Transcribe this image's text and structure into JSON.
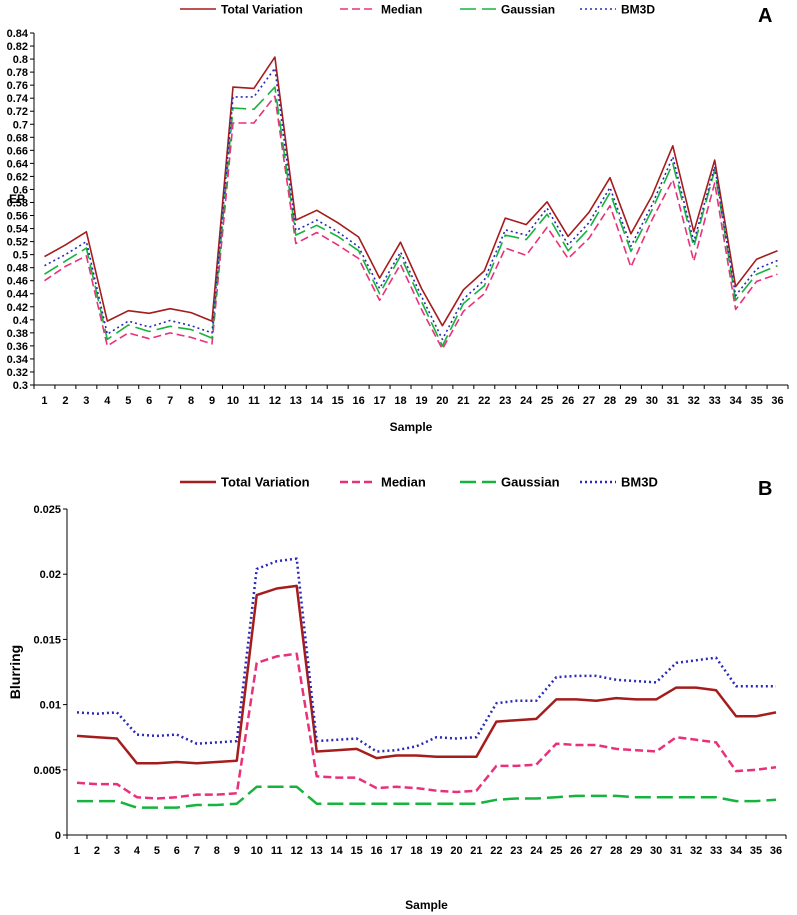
{
  "chart_data": [
    {
      "panel": "A",
      "type": "line",
      "xlabel": "Sample",
      "ylabel": "EP",
      "ylim": [
        0.3,
        0.84
      ],
      "ytick_step": 0.02,
      "x": [
        1,
        2,
        3,
        4,
        5,
        6,
        7,
        8,
        9,
        10,
        11,
        12,
        13,
        14,
        15,
        16,
        17,
        18,
        19,
        20,
        21,
        22,
        23,
        24,
        25,
        26,
        27,
        28,
        29,
        30,
        31,
        32,
        33,
        34,
        35,
        36
      ],
      "legend_placement": "top",
      "series": [
        {
          "name": "Total Variation",
          "color": "#a51c1c",
          "dash": "solid",
          "values": [
            0.497,
            0.515,
            0.535,
            0.398,
            0.414,
            0.41,
            0.417,
            0.411,
            0.398,
            0.757,
            0.755,
            0.803,
            0.553,
            0.568,
            0.549,
            0.527,
            0.464,
            0.519,
            0.448,
            0.391,
            0.446,
            0.475,
            0.556,
            0.546,
            0.581,
            0.528,
            0.565,
            0.618,
            0.532,
            0.59,
            0.667,
            0.535,
            0.645,
            0.451,
            0.493,
            0.506
          ]
        },
        {
          "name": "Median",
          "color": "#e8317a",
          "dash": "dashed",
          "values": [
            0.46,
            0.482,
            0.498,
            0.36,
            0.38,
            0.371,
            0.38,
            0.373,
            0.363,
            0.702,
            0.702,
            0.743,
            0.517,
            0.534,
            0.515,
            0.494,
            0.43,
            0.485,
            0.416,
            0.355,
            0.413,
            0.44,
            0.51,
            0.499,
            0.542,
            0.494,
            0.525,
            0.575,
            0.481,
            0.553,
            0.615,
            0.49,
            0.61,
            0.416,
            0.459,
            0.47
          ]
        },
        {
          "name": "Gaussian",
          "color": "#17b33f",
          "dash": "longdash",
          "values": [
            0.47,
            0.49,
            0.51,
            0.37,
            0.392,
            0.382,
            0.39,
            0.385,
            0.372,
            0.725,
            0.723,
            0.757,
            0.53,
            0.545,
            0.528,
            0.506,
            0.44,
            0.498,
            0.428,
            0.36,
            0.425,
            0.452,
            0.53,
            0.523,
            0.562,
            0.506,
            0.54,
            0.595,
            0.505,
            0.568,
            0.64,
            0.512,
            0.63,
            0.43,
            0.47,
            0.483
          ]
        },
        {
          "name": "BM3D",
          "color": "#2a2ab8",
          "dash": "dotted",
          "values": [
            0.483,
            0.5,
            0.52,
            0.378,
            0.398,
            0.389,
            0.399,
            0.391,
            0.38,
            0.742,
            0.742,
            0.786,
            0.537,
            0.553,
            0.535,
            0.512,
            0.448,
            0.504,
            0.436,
            0.37,
            0.432,
            0.461,
            0.538,
            0.53,
            0.571,
            0.515,
            0.549,
            0.603,
            0.513,
            0.576,
            0.65,
            0.52,
            0.635,
            0.437,
            0.478,
            0.491
          ]
        }
      ]
    },
    {
      "panel": "B",
      "type": "line",
      "xlabel": "Sample",
      "ylabel": "Blurring",
      "ylim": [
        0,
        0.025
      ],
      "ytick_step": 0.005,
      "x": [
        1,
        2,
        3,
        4,
        5,
        6,
        7,
        8,
        9,
        10,
        11,
        12,
        13,
        14,
        15,
        16,
        17,
        18,
        19,
        20,
        21,
        22,
        23,
        24,
        25,
        26,
        27,
        28,
        29,
        30,
        31,
        32,
        33,
        34,
        35,
        36
      ],
      "legend_placement": "top",
      "series": [
        {
          "name": "Total Variation",
          "color": "#a51c1c",
          "dash": "solid",
          "values": [
            0.0076,
            0.0075,
            0.0074,
            0.0055,
            0.0055,
            0.0056,
            0.0055,
            0.0056,
            0.0057,
            0.0184,
            0.0189,
            0.0191,
            0.0064,
            0.0065,
            0.0066,
            0.0059,
            0.0061,
            0.0061,
            0.006,
            0.006,
            0.006,
            0.0087,
            0.0088,
            0.0089,
            0.0104,
            0.0104,
            0.0103,
            0.0105,
            0.0104,
            0.0104,
            0.0113,
            0.0113,
            0.0111,
            0.0091,
            0.0091,
            0.0094
          ]
        },
        {
          "name": "Median",
          "color": "#e8317a",
          "dash": "dashed",
          "values": [
            0.004,
            0.0039,
            0.0039,
            0.0029,
            0.0028,
            0.0029,
            0.0031,
            0.0031,
            0.0032,
            0.0132,
            0.0137,
            0.0139,
            0.0045,
            0.0044,
            0.0044,
            0.0036,
            0.0037,
            0.0036,
            0.0034,
            0.0033,
            0.0034,
            0.0053,
            0.0053,
            0.0054,
            0.007,
            0.0069,
            0.0069,
            0.0066,
            0.0065,
            0.0064,
            0.0075,
            0.0073,
            0.0071,
            0.0049,
            0.005,
            0.0052
          ]
        },
        {
          "name": "Gaussian",
          "color": "#17b33f",
          "dash": "longdash",
          "values": [
            0.0026,
            0.0026,
            0.0026,
            0.0021,
            0.0021,
            0.0021,
            0.0023,
            0.0023,
            0.0024,
            0.0037,
            0.0037,
            0.0037,
            0.0024,
            0.0024,
            0.0024,
            0.0024,
            0.0024,
            0.0024,
            0.0024,
            0.0024,
            0.0024,
            0.0027,
            0.0028,
            0.0028,
            0.0029,
            0.003,
            0.003,
            0.003,
            0.0029,
            0.0029,
            0.0029,
            0.0029,
            0.0029,
            0.0026,
            0.0026,
            0.0027
          ]
        },
        {
          "name": "BM3D",
          "color": "#2a2ab8",
          "dash": "dotted",
          "values": [
            0.0094,
            0.0093,
            0.0094,
            0.0077,
            0.0076,
            0.0077,
            0.007,
            0.0071,
            0.0072,
            0.0204,
            0.021,
            0.0212,
            0.0072,
            0.0073,
            0.0074,
            0.0064,
            0.0065,
            0.0068,
            0.0075,
            0.0074,
            0.0075,
            0.0101,
            0.0103,
            0.0103,
            0.0121,
            0.0122,
            0.0122,
            0.0119,
            0.0118,
            0.0117,
            0.0132,
            0.0134,
            0.0136,
            0.0114,
            0.0114,
            0.0114
          ]
        }
      ]
    }
  ]
}
